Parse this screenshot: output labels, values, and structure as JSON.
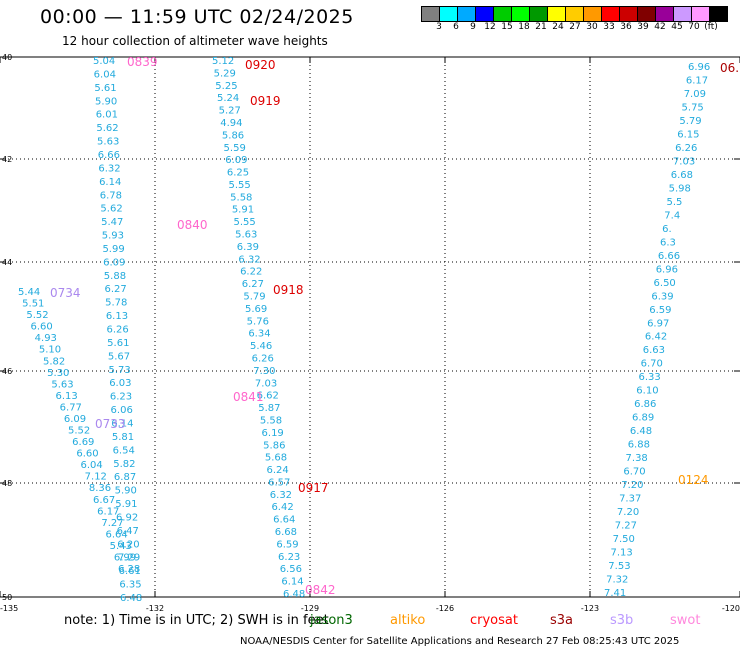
{
  "title": "00:00 — 11:59 UTC 02/24/2025",
  "subtitle": "12 hour collection of altimeter wave heights",
  "legend": {
    "colors": [
      "#808080",
      "#00ffff",
      "#00aaff",
      "#0000ff",
      "#00cc00",
      "#00ff00",
      "#009900",
      "#ffff00",
      "#ffcc00",
      "#ff9900",
      "#ff0000",
      "#cc0000",
      "#800000",
      "#990099",
      "#cc99ff",
      "#ff99ff",
      "#000000"
    ],
    "labels": [
      "3",
      "6",
      "9",
      "12",
      "15",
      "18",
      "21",
      "24",
      "27",
      "30",
      "33",
      "36",
      "39",
      "42",
      "45",
      "70",
      "(ft)"
    ]
  },
  "axes": {
    "xlabels": [
      "-135",
      "-132",
      "-129",
      "-126",
      "-123",
      "-120"
    ],
    "ylabels": [
      "40",
      "42",
      "44",
      "46",
      "48",
      "50"
    ]
  },
  "tracks": [
    {
      "name": "track-a",
      "color": "#22aadd",
      "values": [
        "5.04",
        "6.04",
        "5.61",
        "5.90",
        "6.01",
        "5.62",
        "5.63",
        "6.66",
        "6.32",
        "6.14",
        "6.78",
        "5.62",
        "5.47",
        "5.93",
        "5.99",
        "6.09",
        "5.88",
        "6.27",
        "5.78",
        "6.13",
        "6.26",
        "5.61",
        "5.67",
        "5.73",
        "6.03",
        "6.23",
        "6.06",
        "6.14",
        "5.81",
        "6.54",
        "5.82",
        "6.87",
        "5.90",
        "5.91",
        "6.92",
        "6.47",
        "6.20",
        "7.29",
        "6.61",
        "6.35",
        "6.48"
      ]
    },
    {
      "name": "track-b",
      "color": "#22aadd",
      "values": [
        "5.12",
        "5.29",
        "5.25",
        "5.24",
        "5.27",
        "4.94",
        "5.86",
        "5.59",
        "6.09",
        "6.25",
        "5.55",
        "5.58",
        "5.91",
        "5.55",
        "5.63",
        "6.39",
        "6.32",
        "6.22",
        "6.27",
        "5.79",
        "5.69",
        "5.76",
        "6.34",
        "5.46",
        "6.26",
        "7.30",
        "7.03",
        "6.62",
        "5.87",
        "5.58",
        "6.19",
        "5.86",
        "5.68",
        "6.24",
        "6.57",
        "6.32",
        "6.42",
        "6.64",
        "6.68",
        "6.59",
        "6.23",
        "6.56",
        "6.14",
        "6.48"
      ]
    },
    {
      "name": "track-c",
      "color": "#22aadd",
      "values": [
        "5.44",
        "5.51",
        "5.52",
        "6.60",
        "4.93",
        "5.10",
        "5.82",
        "5.30",
        "5.63",
        "6.13",
        "6.77",
        "6.09",
        "5.52",
        "6.69",
        "6.60",
        "6.04",
        "7.12",
        "8.36",
        "6.67",
        "6.17",
        "7.27",
        "6.64",
        "5.43",
        "6.99",
        "6.28"
      ]
    },
    {
      "name": "track-d",
      "color": "#22aadd",
      "values": [
        "6.96",
        "6.17",
        "7.09",
        "5.75",
        "5.79",
        "6.15",
        "6.26",
        "7.03",
        "6.68",
        "5.98",
        "5.5",
        "7.4",
        "6.",
        "6.3",
        "6.66",
        "6.96",
        "6.50",
        "6.39",
        "6.59",
        "6.97",
        "6.42",
        "6.63",
        "6.70",
        "6.33",
        "6.10",
        "6.86",
        "6.89",
        "6.48",
        "6.88",
        "7.38",
        "6.70",
        "7.20",
        "7.37",
        "7.20",
        "7.27",
        "7.50",
        "7.13",
        "7.53",
        "7.32",
        "7.41"
      ]
    }
  ],
  "passes": [
    {
      "label": "0839",
      "color": "#ff66cc"
    },
    {
      "label": "0920",
      "color": "#dd0000"
    },
    {
      "label": "0919",
      "color": "#dd0000"
    },
    {
      "label": "0840",
      "color": "#ff66cc"
    },
    {
      "label": "0734",
      "color": "#aa88ee"
    },
    {
      "label": "0918",
      "color": "#dd0000"
    },
    {
      "label": "0841",
      "color": "#ff66cc"
    },
    {
      "label": "0733",
      "color": "#aa88ee"
    },
    {
      "label": "0917",
      "color": "#dd0000"
    },
    {
      "label": "0842",
      "color": "#ff66cc"
    },
    {
      "label": "0124",
      "color": "#ff9900"
    },
    {
      "label": "06..",
      "color": "#aa0000"
    }
  ],
  "note": "note: 1) Time is in UTC; 2) SWH is in feet",
  "satellites": [
    {
      "name": "jason3",
      "color": "#006600"
    },
    {
      "name": "altiko",
      "color": "#ff9900"
    },
    {
      "name": "cryosat",
      "color": "#ff0000"
    },
    {
      "name": "s3a",
      "color": "#990000"
    },
    {
      "name": "s3b",
      "color": "#bb99ff"
    },
    {
      "name": "swot",
      "color": "#ff88dd"
    }
  ],
  "credit": "NOAA/NESDIS Center for Satellite Applications and Research    27 Feb 08:25:43 UTC 2025"
}
